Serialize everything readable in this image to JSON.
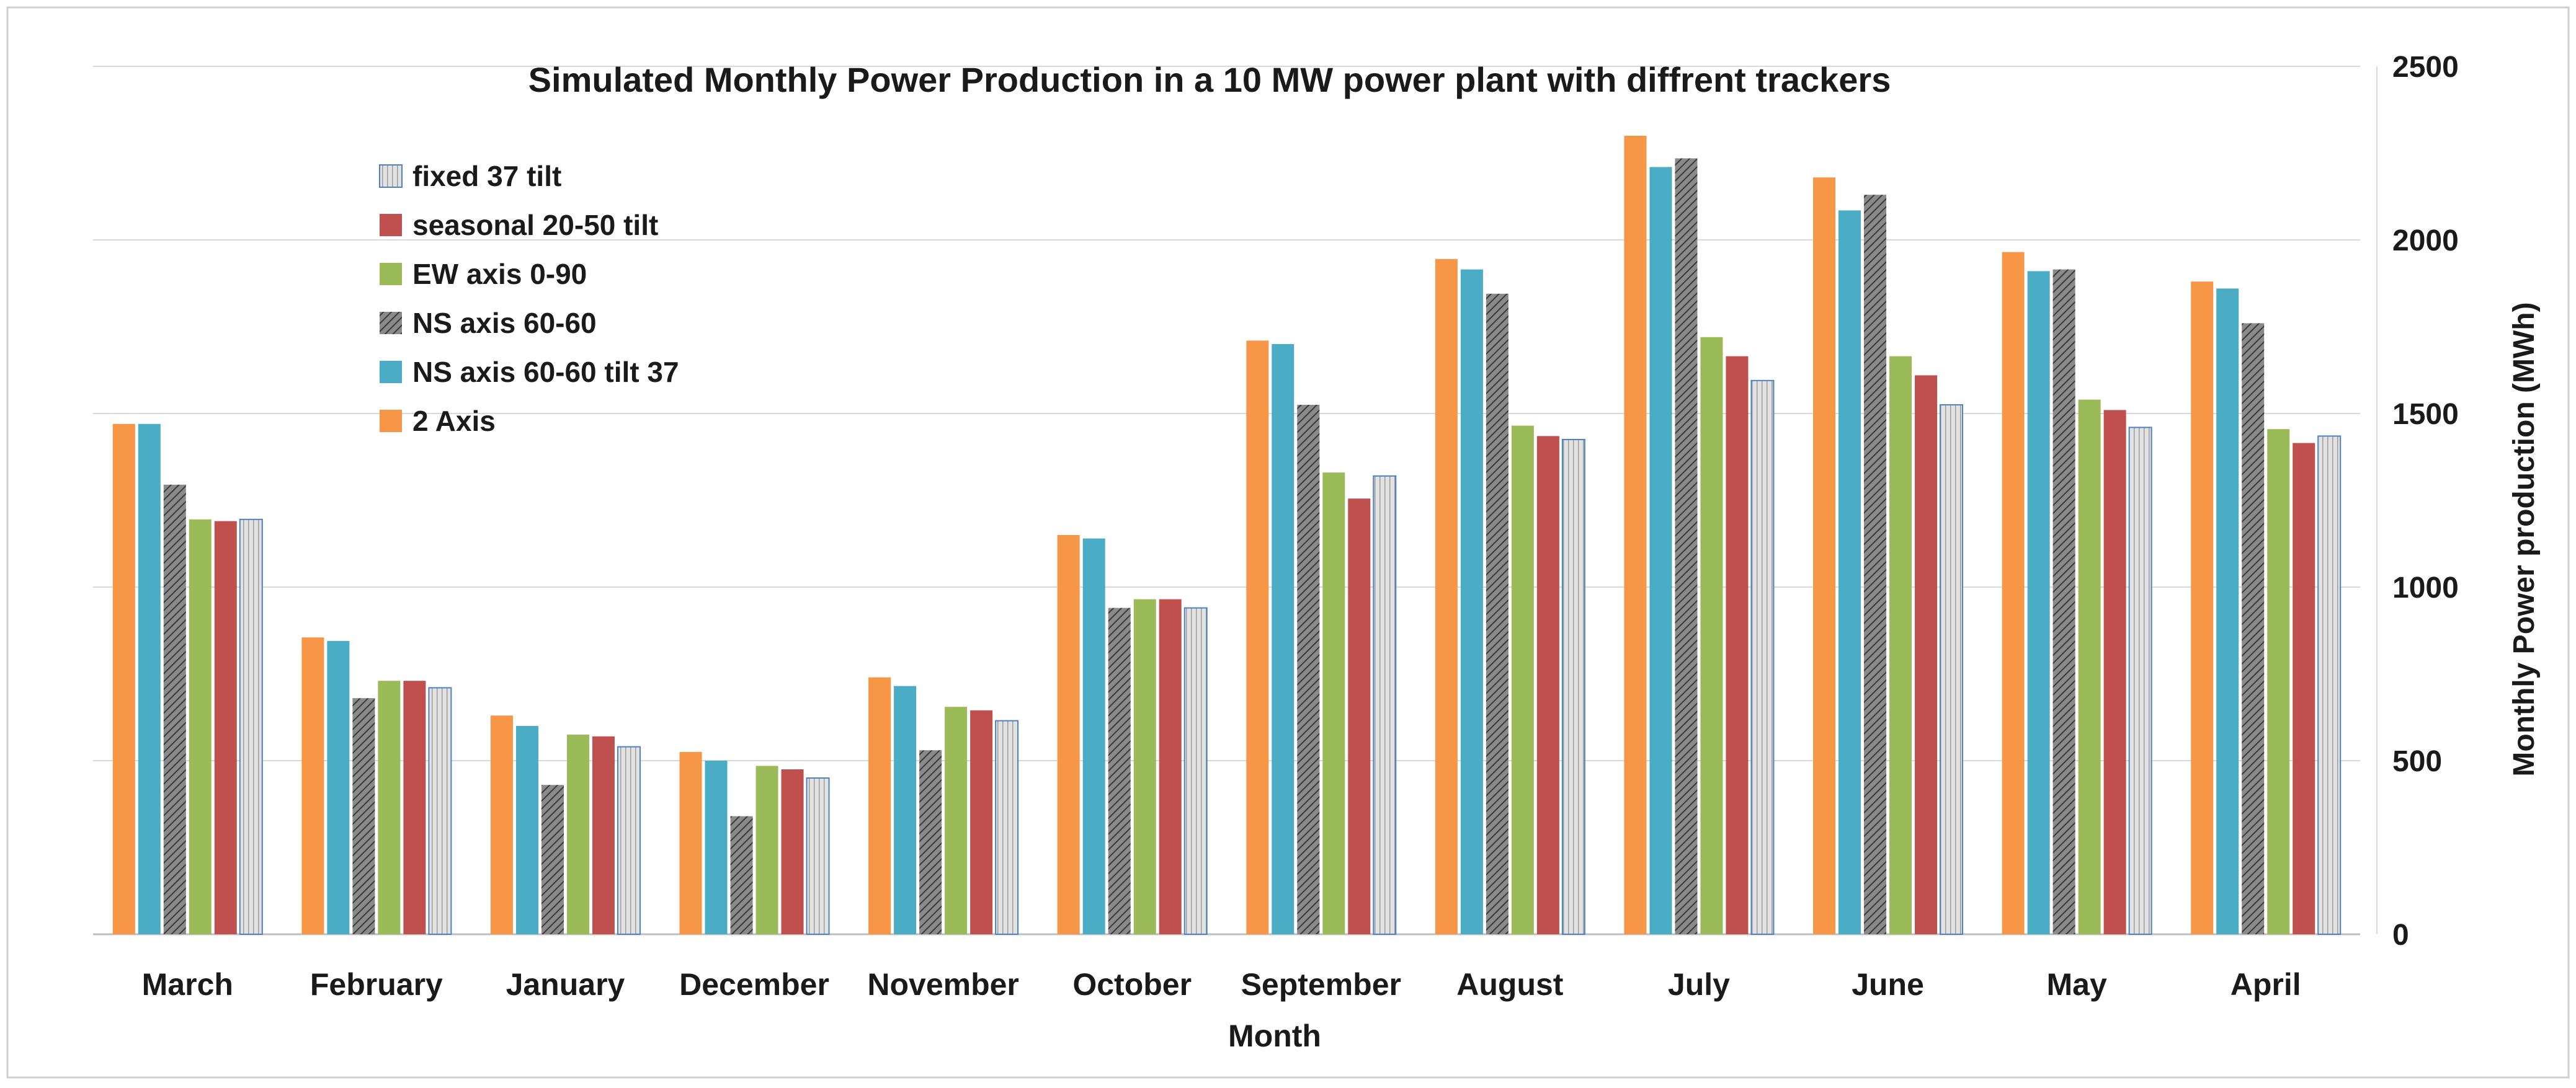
{
  "chart_data": {
    "type": "bar",
    "title": "Simulated Monthly Power Production in a 10 MW power plant with diffrent trackers",
    "xlabel": "Month",
    "ylabel": "Monthly Power production (MWh)",
    "ylim": [
      0,
      2500
    ],
    "yticks": [
      0,
      500,
      1000,
      1500,
      2000,
      2500
    ],
    "grid": true,
    "y_axis_side": "right",
    "legend_position": "top-left",
    "categories": [
      "March",
      "February",
      "January",
      "December",
      "November",
      "October",
      "September",
      "August",
      "July",
      "June",
      "May",
      "April"
    ],
    "series": [
      {
        "name": "2 Axis",
        "color": "#F79646",
        "pattern": "solid",
        "values": [
          1470,
          855,
          630,
          525,
          740,
          1150,
          1710,
          1945,
          2300,
          2180,
          1965,
          1880
        ]
      },
      {
        "name": "NS axis 60-60 tilt 37",
        "color": "#4BACC6",
        "pattern": "solid",
        "values": [
          1470,
          845,
          600,
          500,
          715,
          1140,
          1700,
          1915,
          2210,
          2085,
          1910,
          1860
        ]
      },
      {
        "name": "NS axis 60-60",
        "color": "#6b6b6b",
        "pattern": "hatch",
        "values": [
          1295,
          680,
          430,
          340,
          530,
          940,
          1525,
          1845,
          2235,
          2130,
          1915,
          1760
        ]
      },
      {
        "name": "EW axis 0-90",
        "color": "#9BBB59",
        "pattern": "solid",
        "values": [
          1195,
          730,
          575,
          485,
          655,
          965,
          1330,
          1465,
          1720,
          1665,
          1540,
          1455
        ]
      },
      {
        "name": "seasonal 20-50 tilt",
        "color": "#C0504D",
        "pattern": "solid",
        "values": [
          1190,
          730,
          570,
          475,
          645,
          965,
          1255,
          1435,
          1665,
          1610,
          1510,
          1415
        ]
      },
      {
        "name": "fixed 37 tilt",
        "color": "#C8C8C8",
        "pattern": "grid",
        "values": [
          1195,
          710,
          540,
          450,
          615,
          940,
          1320,
          1425,
          1595,
          1525,
          1460,
          1435
        ]
      }
    ],
    "legend_order": [
      "fixed 37 tilt",
      "seasonal 20-50 tilt",
      "EW axis 0-90",
      "NS axis 60-60",
      "NS axis 60-60 tilt 37",
      "2 Axis"
    ]
  }
}
